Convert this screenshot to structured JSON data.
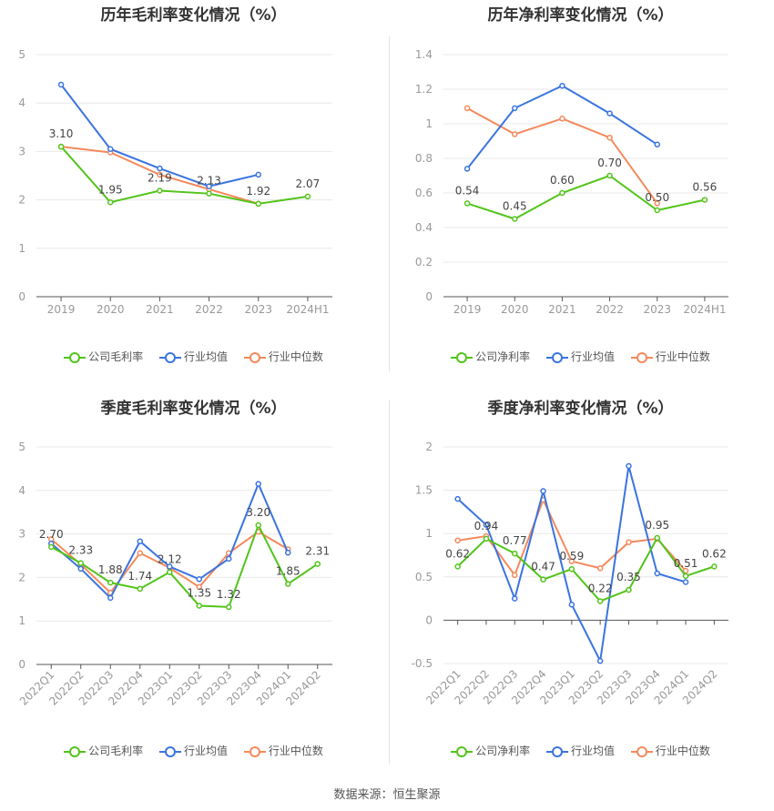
{
  "source_note": "数据来源：恒生聚源",
  "legend_labels": {
    "gross": [
      "公司毛利率",
      "行业均值",
      "行业中位数"
    ],
    "net": [
      "公司净利率",
      "行业均值",
      "行业中位数"
    ]
  },
  "colors": {
    "company": "#52c41a",
    "industry_avg": "#3a74e0",
    "industry_median": "#f5895c",
    "grid": "#e8e8e8",
    "axis_text": "#999999"
  },
  "chart_data": [
    {
      "type": "line",
      "title": "历年毛利率变化情况（%）",
      "categories": [
        "2019",
        "2020",
        "2021",
        "2022",
        "2023",
        "2024H1"
      ],
      "ylim": [
        0,
        5
      ],
      "yticks": [
        "0",
        "1",
        "2",
        "3",
        "4",
        "5"
      ],
      "series": [
        {
          "name": "公司毛利率",
          "values": [
            3.1,
            1.95,
            2.19,
            2.13,
            1.92,
            2.07
          ],
          "labels": [
            "3.10",
            "1.95",
            "2.19",
            "2.13",
            "1.92",
            "2.07"
          ]
        },
        {
          "name": "行业均值",
          "values": [
            4.38,
            3.05,
            2.65,
            2.28,
            2.52,
            null
          ]
        },
        {
          "name": "行业中位数",
          "values": [
            3.1,
            2.98,
            2.52,
            2.22,
            1.92,
            null
          ]
        }
      ]
    },
    {
      "type": "line",
      "title": "历年净利率变化情况（%）",
      "categories": [
        "2019",
        "2020",
        "2021",
        "2022",
        "2023",
        "2024H1"
      ],
      "ylim": [
        0,
        1.4
      ],
      "yticks": [
        "0",
        "0.2",
        "0.4",
        "0.6",
        "0.8",
        "1",
        "1.2",
        "1.4"
      ],
      "series": [
        {
          "name": "公司净利率",
          "values": [
            0.54,
            0.45,
            0.6,
            0.7,
            0.5,
            0.56
          ],
          "labels": [
            "0.54",
            "0.45",
            "0.60",
            "0.70",
            "0.50",
            "0.56"
          ]
        },
        {
          "name": "行业均值",
          "values": [
            0.74,
            1.09,
            1.22,
            1.06,
            0.88,
            null
          ]
        },
        {
          "name": "行业中位数",
          "values": [
            1.09,
            0.94,
            1.03,
            0.92,
            0.54,
            null
          ]
        }
      ]
    },
    {
      "type": "line",
      "title": "季度毛利率变化情况（%）",
      "categories": [
        "2022Q1",
        "2022Q2",
        "2022Q3",
        "2022Q4",
        "2023Q1",
        "2023Q2",
        "2023Q3",
        "2023Q4",
        "2024Q1",
        "2024Q2"
      ],
      "ylim": [
        0,
        5
      ],
      "yticks": [
        "0",
        "1",
        "2",
        "3",
        "4",
        "5"
      ],
      "series": [
        {
          "name": "公司毛利率",
          "values": [
            2.7,
            2.33,
            1.88,
            1.74,
            2.12,
            1.35,
            1.32,
            3.2,
            1.85,
            2.31
          ],
          "labels": [
            "2.70",
            "2.33",
            "1.88",
            "1.74",
            "2.12",
            "1.35",
            "1.32",
            "3.20",
            "1.85",
            "2.31"
          ]
        },
        {
          "name": "行业均值",
          "values": [
            2.78,
            2.2,
            1.53,
            2.83,
            2.25,
            1.96,
            2.43,
            4.15,
            2.57,
            null
          ]
        },
        {
          "name": "行业中位数",
          "values": [
            2.88,
            2.3,
            1.65,
            2.56,
            2.22,
            1.78,
            2.56,
            3.05,
            2.65,
            null
          ]
        }
      ]
    },
    {
      "type": "line",
      "title": "季度净利率变化情况（%）",
      "categories": [
        "2022Q1",
        "2022Q2",
        "2022Q3",
        "2022Q4",
        "2023Q1",
        "2023Q2",
        "2023Q3",
        "2023Q4",
        "2024Q1",
        "2024Q2"
      ],
      "ylim": [
        -0.5,
        2
      ],
      "yticks": [
        "-0.5",
        "0",
        "0.5",
        "1",
        "1.5",
        "2"
      ],
      "series": [
        {
          "name": "公司净利率",
          "values": [
            0.62,
            0.94,
            0.77,
            0.47,
            0.59,
            0.22,
            0.35,
            0.95,
            0.51,
            0.62
          ],
          "labels": [
            "0.62",
            "0.94",
            "0.77",
            "0.47",
            "0.59",
            "0.22",
            "0.35",
            "0.95",
            "0.51",
            "0.62"
          ]
        },
        {
          "name": "行业均值",
          "values": [
            1.4,
            1.1,
            0.25,
            1.49,
            0.18,
            -0.47,
            1.78,
            0.54,
            0.44,
            null
          ]
        },
        {
          "name": "行业中位数",
          "values": [
            0.92,
            0.97,
            0.52,
            1.39,
            0.68,
            0.6,
            0.9,
            0.94,
            0.57,
            null
          ]
        }
      ]
    }
  ]
}
